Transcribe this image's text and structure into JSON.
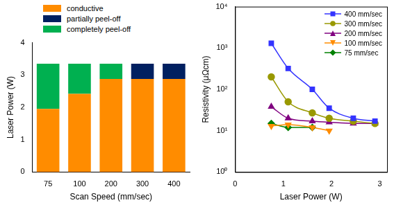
{
  "chart_data": [
    {
      "type": "bar",
      "stacked": true,
      "x_label": "Scan Speed (mm/sec)",
      "y_label": "Laser Power (W)",
      "categories": [
        "75",
        "100",
        "200",
        "300",
        "400"
      ],
      "series": [
        {
          "name": "conductive",
          "color": "#ff8c00",
          "values": [
            1.95,
            2.42,
            2.88,
            2.88,
            2.88
          ]
        },
        {
          "name": "partially peel-off",
          "color": "#002060",
          "values": [
            0,
            0,
            0,
            0.47,
            0.47
          ]
        },
        {
          "name": "completely peel-off",
          "color": "#00b050",
          "values": [
            1.4,
            0.93,
            0.47,
            0,
            0
          ]
        }
      ],
      "ylim": [
        0,
        4
      ],
      "yticks": [
        0,
        1,
        2,
        3,
        4
      ],
      "legend": "top-left",
      "grid": false
    },
    {
      "type": "line",
      "log": "y",
      "x_label": "Laser Power (W)",
      "y_label": "Resistivity (μΩcm)",
      "series": [
        {
          "name": "400 mm/sec",
          "color": "#3333ff",
          "marker": "square",
          "x": [
            0.75,
            1.1,
            1.6,
            1.95,
            2.45,
            2.9
          ],
          "values": [
            1300,
            320,
            100,
            35,
            20,
            17
          ]
        },
        {
          "name": "300 mm/sec",
          "color": "#999900",
          "marker": "circle",
          "x": [
            0.75,
            1.1,
            1.6,
            1.95,
            2.45,
            2.9
          ],
          "values": [
            200,
            50,
            27,
            20,
            17,
            15
          ]
        },
        {
          "name": "200 mm/sec",
          "color": "#800080",
          "marker": "triangle",
          "x": [
            0.75,
            1.1,
            1.6,
            1.95,
            2.45,
            2.9
          ],
          "values": [
            38,
            20,
            17,
            16,
            15,
            15
          ]
        },
        {
          "name": "100 mm/sec",
          "color": "#ff8c00",
          "marker": "triangle-down",
          "x": [
            0.75,
            1.1,
            1.6,
            1.95
          ],
          "values": [
            13,
            14,
            12,
            10
          ]
        },
        {
          "name": "75 mm/sec",
          "color": "#008000",
          "marker": "diamond",
          "x": [
            0.75,
            1.1,
            1.6
          ],
          "values": [
            15,
            12,
            12
          ]
        }
      ],
      "xlim": [
        0,
        3.15
      ],
      "xticks": [
        0,
        1,
        2,
        3
      ],
      "ylim": [
        1,
        10000
      ],
      "yticks": [
        {
          "value": 1,
          "label": "10⁰"
        },
        {
          "value": 10,
          "label": "10¹"
        },
        {
          "value": 100,
          "label": "10²"
        },
        {
          "value": 1000,
          "label": "10³"
        },
        {
          "value": 10000,
          "label": "10⁴"
        }
      ],
      "legend": "top-right",
      "grid": false
    }
  ]
}
